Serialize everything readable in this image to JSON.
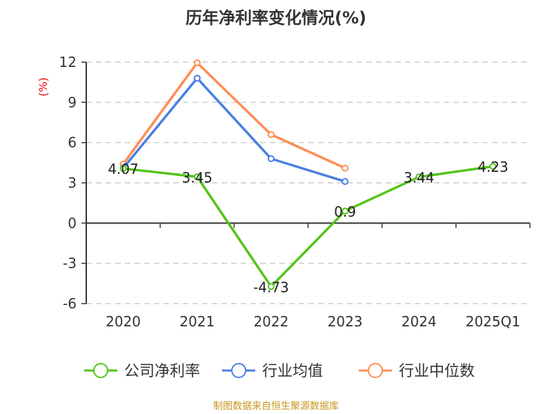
{
  "chart_data": {
    "type": "line",
    "title": "历年净利率变化情况(%)",
    "ylabel": "(%)",
    "xlabel": "",
    "categories": [
      "2020",
      "2021",
      "2022",
      "2023",
      "2024",
      "2025Q1"
    ],
    "ylim": [
      -6,
      12
    ],
    "yticks": [
      -6,
      -3,
      0,
      3,
      6,
      9,
      12
    ],
    "grid": true,
    "legend_position": "bottom",
    "series": [
      {
        "name": "公司净利率",
        "color": "#52c41a",
        "values": [
          4.07,
          3.45,
          -4.73,
          0.9,
          3.44,
          4.23
        ],
        "labels": [
          "4.07",
          "3.45",
          "-4.73",
          "0.9",
          "3.44",
          "4.23"
        ]
      },
      {
        "name": "行业均值",
        "color": "#4a7fe0",
        "values": [
          4.1,
          10.8,
          4.8,
          3.1,
          null,
          null
        ]
      },
      {
        "name": "行业中位数",
        "color": "#ff8c55",
        "values": [
          4.4,
          11.95,
          6.6,
          4.1,
          null,
          null
        ]
      }
    ]
  },
  "source": "制图数据来自恒生聚源数据库"
}
